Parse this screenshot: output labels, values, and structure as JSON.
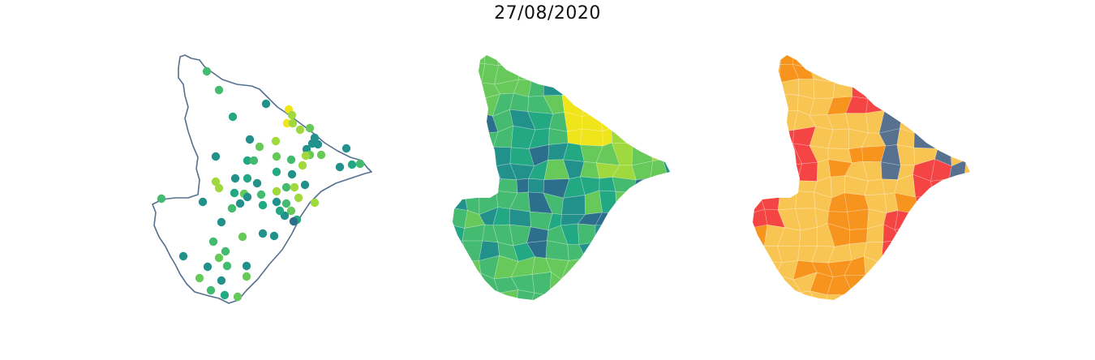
{
  "title": "27/08/2020",
  "palette": {
    "outline": "#55708e",
    "viridis": [
      "#3d1f6e",
      "#2b6f8c",
      "#23918b",
      "#23a884",
      "#44bb70",
      "#66c95a",
      "#9fd93d",
      "#f0e41a"
    ],
    "risk": {
      "low": "#58718f",
      "moderate": "#f9c552",
      "high": "#f7941d",
      "very_high": "#f54444"
    }
  },
  "panels": [
    {
      "name": "points-map",
      "type": "point-map",
      "note_colorscale": "viridis"
    },
    {
      "name": "choropleth-viridis",
      "type": "choropleth",
      "note_colorscale": "viridis"
    },
    {
      "name": "choropleth-risk",
      "type": "choropleth",
      "note_colorscale": "risk"
    }
  ]
}
